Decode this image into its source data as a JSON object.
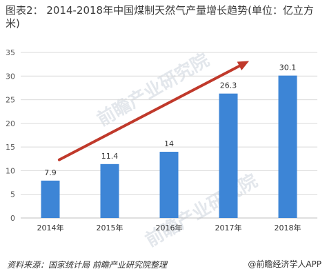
{
  "title": "图表2：  2014-2018年中国煤制天然气产量增长趋势(单位：亿立方米)",
  "source": "资料来源：国家统计局 前瞻产业研究院整理",
  "brand": "@前瞻经济学人APP",
  "watermark": "前瞻产业研究院",
  "colors": {
    "bar": "#3d85d6",
    "arrow": "#c0392b",
    "grid": "#d9d9d9"
  },
  "chart_data": {
    "type": "bar",
    "categories": [
      "2014年",
      "2015年",
      "2016年",
      "2017年",
      "2018年"
    ],
    "values": [
      7.9,
      11.4,
      14,
      26.3,
      30.1
    ],
    "data_labels": [
      "7.9",
      "11.4",
      "14",
      "26.3",
      "30.1"
    ],
    "ylim": [
      0,
      35
    ],
    "yticks": [
      0,
      5,
      10,
      15,
      20,
      25,
      30,
      35
    ],
    "grid": true,
    "trend_arrow": true
  }
}
